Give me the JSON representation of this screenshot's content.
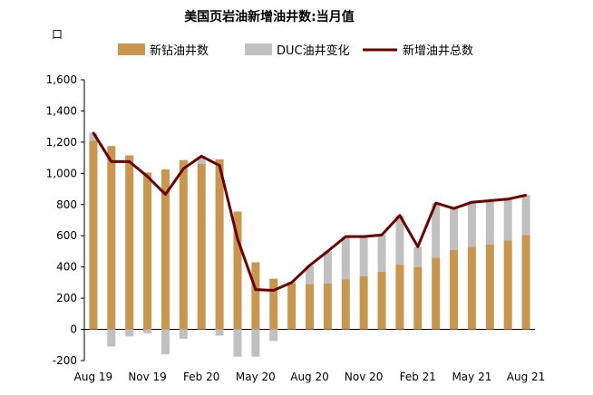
{
  "chart_data": {
    "type": "bar",
    "title": "美国页岩油新增油井数:当月值",
    "unit_label": "口",
    "ylim": [
      -200,
      1600
    ],
    "yticks": [
      -200,
      0,
      200,
      400,
      600,
      800,
      1000,
      1200,
      1400,
      1600
    ],
    "ytick_labels": [
      "-200",
      "0",
      "200",
      "400",
      "600",
      "800",
      "1,000",
      "1,200",
      "1,400",
      "1,600"
    ],
    "x": [
      "2019-08",
      "2019-09",
      "2019-10",
      "2019-11",
      "2019-12",
      "2020-01",
      "2020-02",
      "2020-03",
      "2020-04",
      "2020-05",
      "2020-06",
      "2020-07",
      "2020-08",
      "2020-09",
      "2020-10",
      "2020-11",
      "2020-12",
      "2021-01",
      "2021-02",
      "2021-03",
      "2021-04",
      "2021-05",
      "2021-06",
      "2021-07",
      "2021-08"
    ],
    "xtick_labels": [
      {
        "index": 0,
        "label": "Aug 19"
      },
      {
        "index": 3,
        "label": "Nov 19"
      },
      {
        "index": 6,
        "label": "Feb 20"
      },
      {
        "index": 9,
        "label": "May 20"
      },
      {
        "index": 12,
        "label": "Aug 20"
      },
      {
        "index": 15,
        "label": "Nov 20"
      },
      {
        "index": 18,
        "label": "Feb 21"
      },
      {
        "index": 21,
        "label": "May 21"
      },
      {
        "index": 24,
        "label": "Aug 21"
      }
    ],
    "grid": false,
    "legend_position": "top",
    "series": [
      {
        "name": "新钻油井数",
        "kind": "bar",
        "color": "#C8964E",
        "values": [
          1210,
          1175,
          1115,
          1005,
          1025,
          1085,
          1060,
          1090,
          755,
          430,
          325,
          295,
          290,
          295,
          320,
          340,
          370,
          415,
          400,
          460,
          510,
          530,
          545,
          570,
          605
        ]
      },
      {
        "name": "DUC油井变化",
        "kind": "bar",
        "color": "#C0C0C0",
        "values": [
          50,
          -110,
          -45,
          -25,
          -160,
          -60,
          50,
          -40,
          -175,
          -175,
          -75,
          10,
          120,
          205,
          275,
          255,
          235,
          315,
          130,
          350,
          265,
          285,
          280,
          265,
          255
        ]
      },
      {
        "name": "新增油井总数",
        "kind": "line",
        "color": "#6B0000",
        "values": [
          1260,
          1075,
          1075,
          980,
          865,
          1030,
          1110,
          1050,
          580,
          255,
          250,
          300,
          410,
          500,
          595,
          595,
          605,
          730,
          530,
          810,
          775,
          815,
          825,
          835,
          860
        ]
      }
    ]
  }
}
